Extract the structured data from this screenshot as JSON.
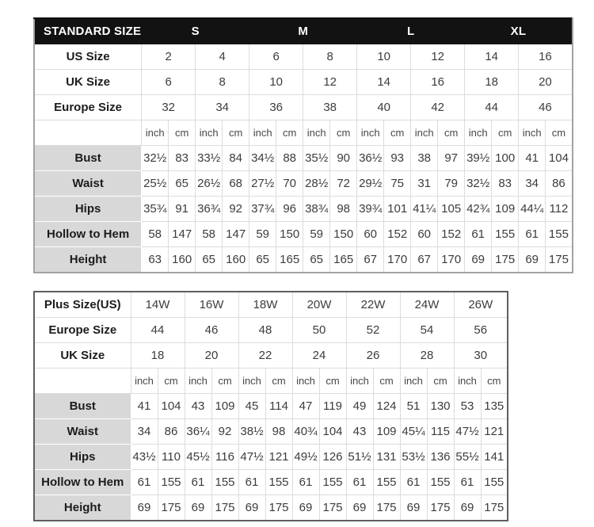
{
  "colors": {
    "header_bg": "#121212",
    "header_text": "#ffffff",
    "label_bg": "#d8d8d8",
    "grid_line": "#dcdcdc",
    "outer_border_standard": "#a3a3a3",
    "outer_border_plus": "#5f5f5f",
    "value_text": "#3c3c3c",
    "label_text": "#1c1c1c"
  },
  "standard_table": {
    "title": "STANDARD SIZE",
    "groups": [
      "S",
      "M",
      "L",
      "XL"
    ],
    "size_rows": [
      {
        "label": "US Size",
        "values": [
          "2",
          "4",
          "6",
          "8",
          "10",
          "12",
          "14",
          "16"
        ]
      },
      {
        "label": "UK Size",
        "values": [
          "6",
          "8",
          "10",
          "12",
          "14",
          "16",
          "18",
          "20"
        ]
      },
      {
        "label": "Europe Size",
        "values": [
          "32",
          "34",
          "36",
          "38",
          "40",
          "42",
          "44",
          "46"
        ]
      }
    ],
    "units": [
      "inch",
      "cm",
      "inch",
      "cm",
      "inch",
      "cm",
      "inch",
      "cm",
      "inch",
      "cm",
      "inch",
      "cm",
      "inch",
      "cm",
      "inch",
      "cm"
    ],
    "measurement_rows": [
      {
        "label": "Bust",
        "values": [
          "32½",
          "83",
          "33½",
          "84",
          "34½",
          "88",
          "35½",
          "90",
          "36½",
          "93",
          "38",
          "97",
          "39½",
          "100",
          "41",
          "104"
        ]
      },
      {
        "label": "Waist",
        "values": [
          "25½",
          "65",
          "26½",
          "68",
          "27½",
          "70",
          "28½",
          "72",
          "29½",
          "75",
          "31",
          "79",
          "32½",
          "83",
          "34",
          "86"
        ]
      },
      {
        "label": "Hips",
        "values": [
          "35¾",
          "91",
          "36¾",
          "92",
          "37¾",
          "96",
          "38¾",
          "98",
          "39¾",
          "101",
          "41¼",
          "105",
          "42¾",
          "109",
          "44¼",
          "112"
        ]
      },
      {
        "label": "Hollow to Hem",
        "values": [
          "58",
          "147",
          "58",
          "147",
          "59",
          "150",
          "59",
          "150",
          "60",
          "152",
          "60",
          "152",
          "61",
          "155",
          "61",
          "155"
        ]
      },
      {
        "label": "Height",
        "values": [
          "63",
          "160",
          "65",
          "160",
          "65",
          "165",
          "65",
          "165",
          "67",
          "170",
          "67",
          "170",
          "69",
          "175",
          "69",
          "175"
        ]
      }
    ]
  },
  "plus_table": {
    "size_rows": [
      {
        "label": "Plus Size(US)",
        "values": [
          "14W",
          "16W",
          "18W",
          "20W",
          "22W",
          "24W",
          "26W"
        ]
      },
      {
        "label": "Europe Size",
        "values": [
          "44",
          "46",
          "48",
          "50",
          "52",
          "54",
          "56"
        ]
      },
      {
        "label": "UK Size",
        "values": [
          "18",
          "20",
          "22",
          "24",
          "26",
          "28",
          "30"
        ]
      }
    ],
    "units": [
      "inch",
      "cm",
      "inch",
      "cm",
      "inch",
      "cm",
      "inch",
      "cm",
      "inch",
      "cm",
      "inch",
      "cm",
      "inch",
      "cm"
    ],
    "measurement_rows": [
      {
        "label": "Bust",
        "values": [
          "41",
          "104",
          "43",
          "109",
          "45",
          "114",
          "47",
          "119",
          "49",
          "124",
          "51",
          "130",
          "53",
          "135"
        ]
      },
      {
        "label": "Waist",
        "values": [
          "34",
          "86",
          "36¼",
          "92",
          "38½",
          "98",
          "40¾",
          "104",
          "43",
          "109",
          "45¼",
          "115",
          "47½",
          "121"
        ]
      },
      {
        "label": "Hips",
        "values": [
          "43½",
          "110",
          "45½",
          "116",
          "47½",
          "121",
          "49½",
          "126",
          "51½",
          "131",
          "53½",
          "136",
          "55½",
          "141"
        ]
      },
      {
        "label": "Hollow to Hem",
        "values": [
          "61",
          "155",
          "61",
          "155",
          "61",
          "155",
          "61",
          "155",
          "61",
          "155",
          "61",
          "155",
          "61",
          "155"
        ]
      },
      {
        "label": "Height",
        "values": [
          "69",
          "175",
          "69",
          "175",
          "69",
          "175",
          "69",
          "175",
          "69",
          "175",
          "69",
          "175",
          "69",
          "175"
        ]
      }
    ]
  }
}
